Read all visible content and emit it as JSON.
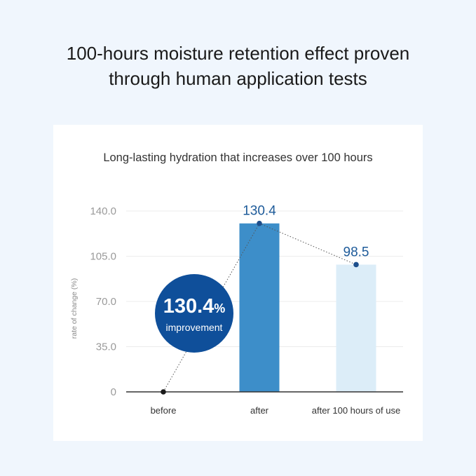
{
  "headline": {
    "line1": "100-hours moisture retention effect proven",
    "line2": "through human application tests"
  },
  "chart_data": {
    "type": "bar",
    "title": "Long-lasting hydration that increases over 100 hours",
    "ylabel": "rate of change (%)",
    "xlabel": "",
    "ylim": [
      0,
      140
    ],
    "yticks": [
      "0",
      "35.0",
      "70.0",
      "105.0",
      "140.0"
    ],
    "categories": [
      "before",
      "after",
      "after 100 hours of use"
    ],
    "values": [
      0,
      130.4,
      98.5
    ],
    "value_labels": [
      "",
      "130.4",
      "98.5"
    ],
    "bar_colors": [
      "#ffffff",
      "#3d8ec9",
      "#dcedf8"
    ],
    "grid": true,
    "legend": "none"
  },
  "badge": {
    "value": "130.4",
    "unit": "%",
    "text": "improvement"
  },
  "colors": {
    "background": "#f0f6fd",
    "badge": "#0f4f9a",
    "bar_after": "#3d8ec9",
    "bar_after_100h": "#dcedf8",
    "value_text": "#1e5b9a"
  }
}
